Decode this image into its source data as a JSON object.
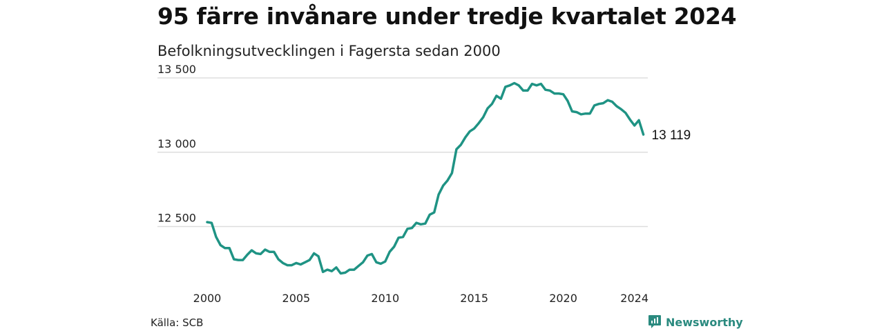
{
  "header": {
    "title": "95 färre invånare under tredje kvartalet 2024",
    "subtitle": "Befolkningsutvecklingen i Fagersta sedan 2000"
  },
  "footer": {
    "source": "Källa: SCB",
    "brand": "Newsworthy"
  },
  "colors": {
    "line": "#1f9384",
    "brand": "#2a8a7f",
    "grid": "#dddddd"
  },
  "chart_data": {
    "type": "line",
    "title": "95 färre invånare under tredje kvartalet 2024",
    "subtitle": "Befolkningsutvecklingen i Fagersta sedan 2000",
    "xlabel": "",
    "ylabel": "",
    "ylim": [
      12150,
      13500
    ],
    "xlim": [
      2000,
      2024.75
    ],
    "yticks": [
      12500,
      13000,
      13500
    ],
    "ytick_labels": [
      "12 500",
      "13 000",
      "13 500"
    ],
    "xticks": [
      2000,
      2005,
      2010,
      2015,
      2020,
      2024
    ],
    "xtick_labels": [
      "2000",
      "2005",
      "2010",
      "2015",
      "2020",
      "2024"
    ],
    "grid": "horizontal",
    "legend": "none",
    "end_label": "13 119",
    "series": [
      {
        "x": [
          2000.0,
          2000.25,
          2000.5,
          2000.75,
          2001.0,
          2001.25,
          2001.5,
          2001.75,
          2002.0,
          2002.25,
          2002.5,
          2002.75,
          2003.0,
          2003.25,
          2003.5,
          2003.75,
          2004.0,
          2004.25,
          2004.5,
          2004.75,
          2005.0,
          2005.25,
          2005.5,
          2005.75,
          2006.0,
          2006.25,
          2006.5,
          2006.75,
          2007.0,
          2007.25,
          2007.5,
          2007.75,
          2008.0,
          2008.25,
          2008.5,
          2008.75,
          2009.0,
          2009.25,
          2009.5,
          2009.75,
          2010.0,
          2010.25,
          2010.5,
          2010.75,
          2011.0,
          2011.25,
          2011.5,
          2011.75,
          2012.0,
          2012.25,
          2012.5,
          2012.75,
          2013.0,
          2013.25,
          2013.5,
          2013.75,
          2014.0,
          2014.25,
          2014.5,
          2014.75,
          2015.0,
          2015.25,
          2015.5,
          2015.75,
          2016.0,
          2016.25,
          2016.5,
          2016.75,
          2017.0,
          2017.25,
          2017.5,
          2017.75,
          2018.0,
          2018.25,
          2018.5,
          2018.75,
          2019.0,
          2019.25,
          2019.5,
          2019.75,
          2020.0,
          2020.25,
          2020.5,
          2020.75,
          2021.0,
          2021.25,
          2021.5,
          2021.75,
          2022.0,
          2022.25,
          2022.5,
          2022.75,
          2023.0,
          2023.25,
          2023.5,
          2023.75,
          2024.0,
          2024.25,
          2024.5
        ],
        "values": [
          12530,
          12525,
          12430,
          12375,
          12355,
          12355,
          12280,
          12275,
          12275,
          12310,
          12340,
          12320,
          12315,
          12345,
          12330,
          12330,
          12280,
          12255,
          12240,
          12240,
          12255,
          12245,
          12260,
          12275,
          12320,
          12300,
          12195,
          12210,
          12200,
          12225,
          12185,
          12190,
          12210,
          12210,
          12235,
          12260,
          12305,
          12315,
          12260,
          12250,
          12265,
          12330,
          12365,
          12425,
          12430,
          12485,
          12490,
          12525,
          12515,
          12520,
          12580,
          12595,
          12715,
          12775,
          12810,
          12860,
          13020,
          13050,
          13100,
          13140,
          13160,
          13195,
          13235,
          13295,
          13325,
          13380,
          13360,
          13440,
          13450,
          13465,
          13450,
          13415,
          13415,
          13460,
          13450,
          13460,
          13420,
          13415,
          13395,
          13395,
          13390,
          13345,
          13275,
          13270,
          13255,
          13260,
          13260,
          13315,
          13325,
          13330,
          13350,
          13340,
          13310,
          13290,
          13265,
          13220,
          13180,
          13215,
          13119
        ]
      }
    ]
  }
}
